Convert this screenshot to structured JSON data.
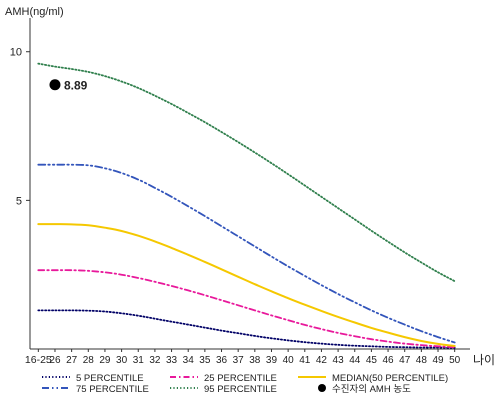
{
  "chart_data": {
    "type": "line",
    "ylabel": "AMH(ng/ml)",
    "xlabel": "나이",
    "ylim": [
      0,
      11
    ],
    "yticks": [
      5,
      10
    ],
    "grid": false,
    "legend_position": "bottom",
    "categories": [
      "16-25",
      "26",
      "27",
      "28",
      "29",
      "30",
      "31",
      "32",
      "33",
      "34",
      "35",
      "36",
      "37",
      "38",
      "39",
      "40",
      "41",
      "42",
      "43",
      "44",
      "45",
      "46",
      "47",
      "48",
      "49",
      "50"
    ],
    "series": [
      {
        "name": "5 PERCENTILE",
        "color": "#000066",
        "dash": "dotted",
        "values": [
          1.3,
          1.3,
          1.3,
          1.29,
          1.26,
          1.2,
          1.12,
          1.02,
          0.92,
          0.82,
          0.72,
          0.62,
          0.53,
          0.44,
          0.36,
          0.29,
          0.23,
          0.18,
          0.14,
          0.11,
          0.09,
          0.07,
          0.06,
          0.05,
          0.05,
          0.04
        ]
      },
      {
        "name": "25 PERCENTILE",
        "color": "#e8199b",
        "dash": "dashdot",
        "values": [
          2.65,
          2.65,
          2.65,
          2.63,
          2.58,
          2.5,
          2.39,
          2.26,
          2.12,
          1.97,
          1.81,
          1.64,
          1.47,
          1.3,
          1.13,
          0.97,
          0.81,
          0.67,
          0.54,
          0.43,
          0.33,
          0.25,
          0.18,
          0.13,
          0.09,
          0.06
        ]
      },
      {
        "name": "MEDIAN(50 PERCENTILE)",
        "color": "#f5c800",
        "dash": "solid",
        "values": [
          4.2,
          4.2,
          4.19,
          4.16,
          4.08,
          3.97,
          3.81,
          3.62,
          3.4,
          3.17,
          2.93,
          2.68,
          2.43,
          2.18,
          1.94,
          1.71,
          1.49,
          1.28,
          1.08,
          0.89,
          0.71,
          0.55,
          0.4,
          0.27,
          0.17,
          0.1
        ]
      },
      {
        "name": "75 PERCENTILE",
        "color": "#3355bb",
        "dash": "dashdotdot",
        "values": [
          6.2,
          6.2,
          6.2,
          6.18,
          6.08,
          5.92,
          5.7,
          5.42,
          5.12,
          4.8,
          4.47,
          4.13,
          3.79,
          3.45,
          3.11,
          2.78,
          2.46,
          2.15,
          1.85,
          1.57,
          1.3,
          1.05,
          0.82,
          0.6,
          0.4,
          0.22
        ]
      },
      {
        "name": "95 PERCENTILE",
        "color": "#2f7f4c",
        "dash": "dotted",
        "values": [
          9.6,
          9.5,
          9.42,
          9.32,
          9.18,
          9.0,
          8.78,
          8.52,
          8.24,
          7.94,
          7.63,
          7.3,
          6.96,
          6.61,
          6.25,
          5.88,
          5.5,
          5.12,
          4.74,
          4.36,
          3.98,
          3.61,
          3.25,
          2.91,
          2.58,
          2.28
        ]
      }
    ],
    "marker": {
      "name": "수진자의 AMH 농도",
      "x": "26",
      "y": 8.89,
      "label": "8.89",
      "color": "#000000"
    },
    "legend": [
      {
        "label": "5 PERCENTILE",
        "series": 0
      },
      {
        "label": "25 PERCENTILE",
        "series": 1
      },
      {
        "label": "MEDIAN(50 PERCENTILE)",
        "series": 2
      },
      {
        "label": "75 PERCENTILE",
        "series": 3
      },
      {
        "label": "95 PERCENTILE",
        "series": 4
      },
      {
        "label": "수진자의 AMH 농도",
        "marker": true
      }
    ]
  }
}
